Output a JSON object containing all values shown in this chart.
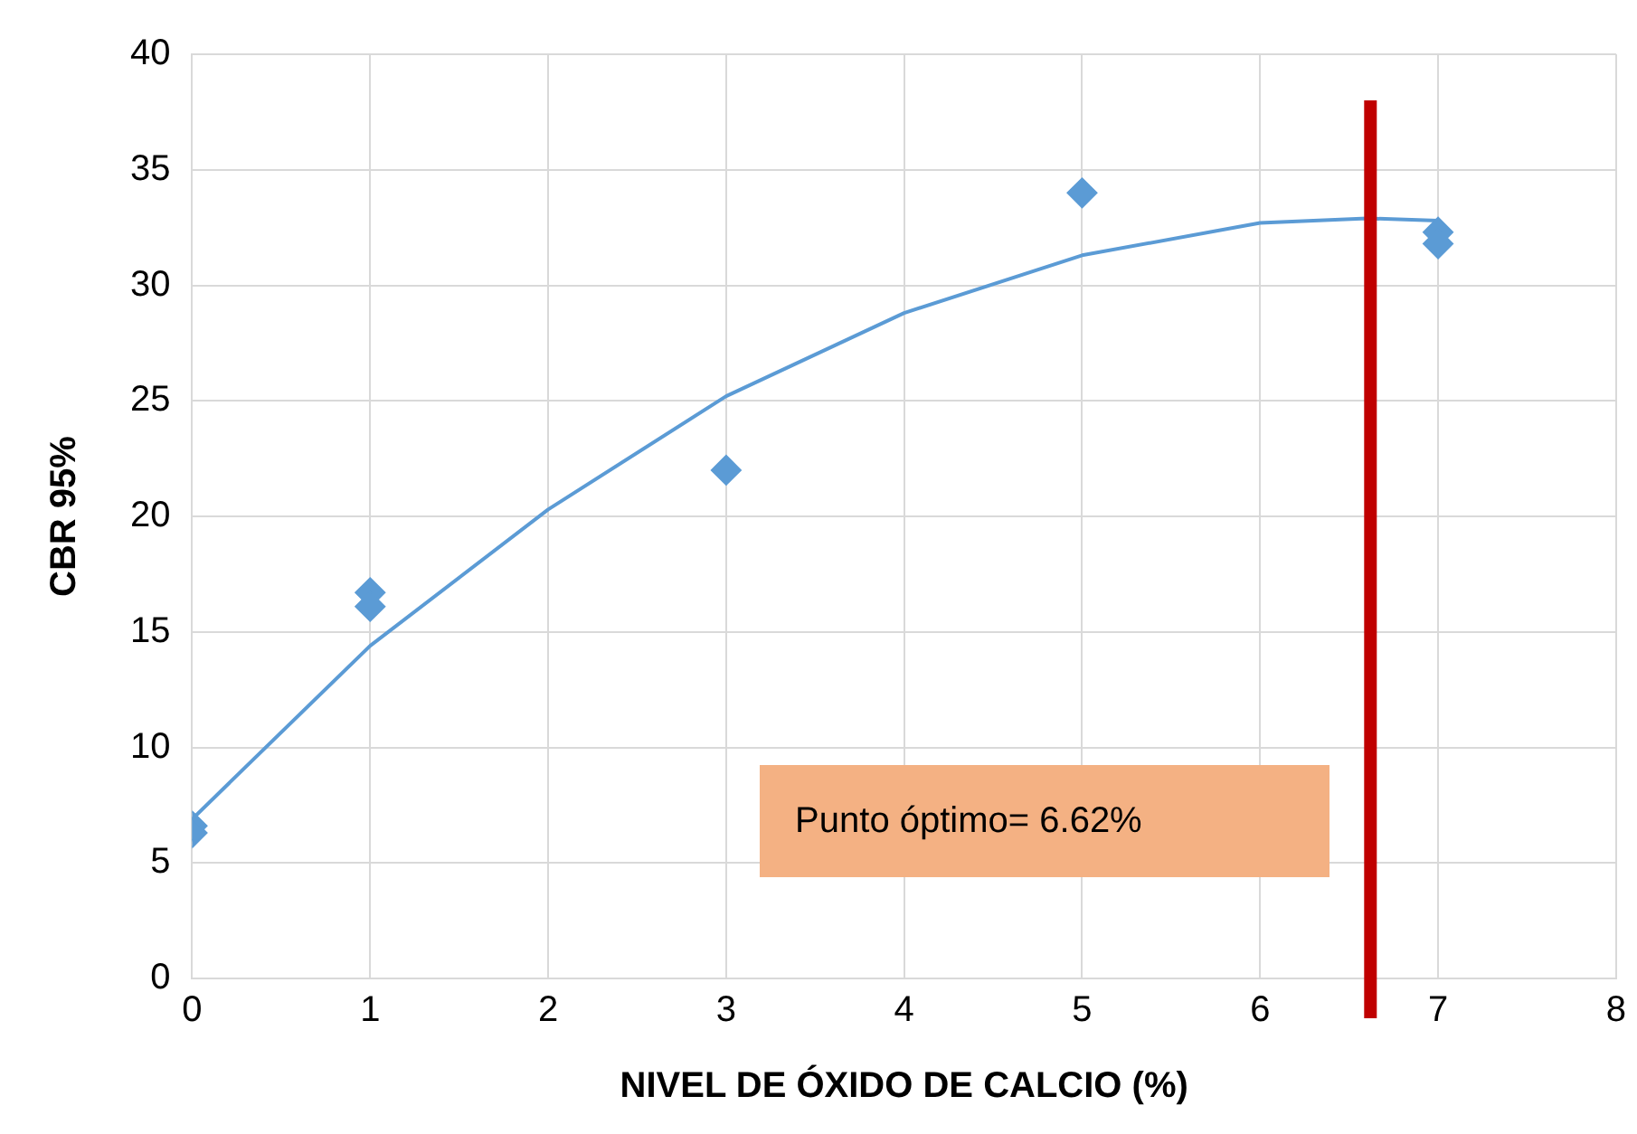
{
  "chart_data": {
    "type": "scatter",
    "xlabel": "NIVEL DE ÓXIDO DE CALCIO (%)",
    "ylabel": "CBR 95%",
    "series": [
      {
        "type": "scatter",
        "color": "#5b9bd5",
        "marker": "diamond",
        "x": [
          0,
          0,
          1,
          1,
          3,
          5,
          7,
          7
        ],
        "values": [
          6.6,
          6.3,
          16.7,
          16.1,
          22.0,
          34.0,
          32.3,
          31.8
        ]
      },
      {
        "type": "line",
        "color": "#5b9bd5",
        "marker": "none",
        "x": [
          0,
          1,
          2,
          3,
          4,
          5,
          6,
          6.6,
          7
        ],
        "values": [
          6.9,
          14.4,
          20.3,
          25.2,
          28.8,
          31.3,
          32.7,
          32.9,
          32.8
        ]
      }
    ],
    "xlim": [
      0,
      8
    ],
    "xticks": [
      0,
      1,
      2,
      3,
      4,
      5,
      6,
      7,
      8
    ],
    "ylim": [
      0,
      40
    ],
    "yticks": [
      0,
      5,
      10,
      15,
      20,
      25,
      30,
      35,
      40
    ],
    "grid": true,
    "ref_lines": [
      {
        "axis": "x",
        "value": 6.62,
        "color": "#c00000"
      }
    ],
    "annotations": [
      "Punto óptimo= 6.62%"
    ]
  }
}
